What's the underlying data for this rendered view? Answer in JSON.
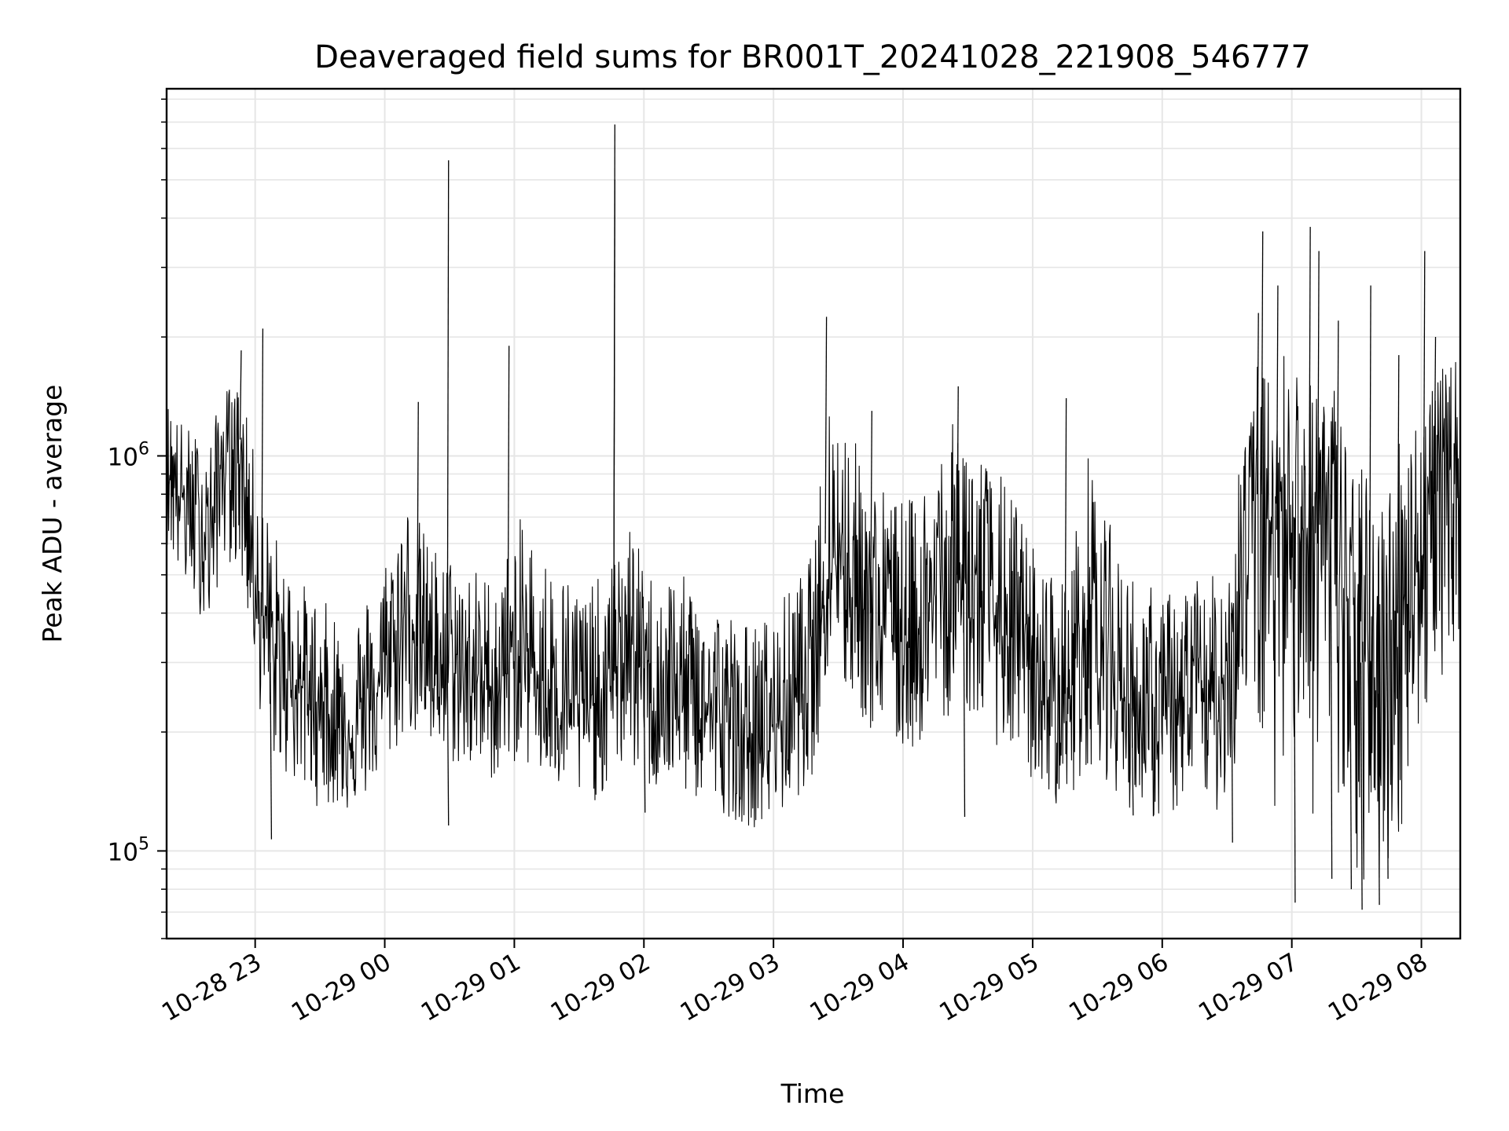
{
  "chart_data": {
    "type": "line",
    "title": "Deaveraged field sums for BR001T_20241028_221908_546777",
    "xlabel": "Time",
    "ylabel": "Peak ADU - average",
    "y_scale": "log",
    "ylim": [
      60000,
      8500000
    ],
    "xlim": [
      "2024-10-28 22:19",
      "2024-10-29 08:18"
    ],
    "grid": true,
    "line_color": "#000000",
    "grid_color": "#e6e6e6",
    "x_ticks": [
      {
        "t": "2024-10-28 23:00",
        "label": "10-28 23"
      },
      {
        "t": "2024-10-29 00:00",
        "label": "10-29 00"
      },
      {
        "t": "2024-10-29 01:00",
        "label": "10-29 01"
      },
      {
        "t": "2024-10-29 02:00",
        "label": "10-29 02"
      },
      {
        "t": "2024-10-29 03:00",
        "label": "10-29 03"
      },
      {
        "t": "2024-10-29 04:00",
        "label": "10-29 04"
      },
      {
        "t": "2024-10-29 05:00",
        "label": "10-29 05"
      },
      {
        "t": "2024-10-29 06:00",
        "label": "10-29 06"
      },
      {
        "t": "2024-10-29 07:00",
        "label": "10-29 07"
      },
      {
        "t": "2024-10-29 08:00",
        "label": "10-29 08"
      }
    ],
    "y_ticks": [
      {
        "value": 100000,
        "base": "10",
        "exp": "5"
      },
      {
        "value": 1000000,
        "base": "10",
        "exp": "6"
      }
    ],
    "series": [
      {
        "x": [
          "2024-10-28 22:19",
          "2024-10-28 22:25",
          "2024-10-28 22:32",
          "2024-10-28 22:39",
          "2024-10-28 22:45",
          "2024-10-28 22:52",
          "2024-10-28 22:57",
          "2024-10-28 23:03",
          "2024-10-28 23:09",
          "2024-10-28 23:16",
          "2024-10-28 23:22",
          "2024-10-28 23:28",
          "2024-10-28 23:35",
          "2024-10-28 23:41",
          "2024-10-28 23:47",
          "2024-10-28 23:53",
          "2024-10-29 00:00",
          "2024-10-29 00:06",
          "2024-10-29 00:12",
          "2024-10-29 00:18",
          "2024-10-29 00:24",
          "2024-10-29 00:31",
          "2024-10-29 00:37",
          "2024-10-29 00:43",
          "2024-10-29 00:50",
          "2024-10-29 00:56",
          "2024-10-29 01:02",
          "2024-10-29 01:08",
          "2024-10-29 01:15",
          "2024-10-29 01:21",
          "2024-10-29 01:27",
          "2024-10-29 01:33",
          "2024-10-29 01:39",
          "2024-10-29 01:46",
          "2024-10-29 01:52",
          "2024-10-29 01:58",
          "2024-10-29 02:04",
          "2024-10-29 02:11",
          "2024-10-29 02:17",
          "2024-10-29 02:23",
          "2024-10-29 02:29",
          "2024-10-29 02:36",
          "2024-10-29 02:42",
          "2024-10-29 02:48",
          "2024-10-29 02:54",
          "2024-10-29 03:01",
          "2024-10-29 03:07",
          "2024-10-29 03:13",
          "2024-10-29 03:19",
          "2024-10-29 03:25",
          "2024-10-29 03:32",
          "2024-10-29 03:38",
          "2024-10-29 03:44",
          "2024-10-29 03:50",
          "2024-10-29 03:57",
          "2024-10-29 04:03",
          "2024-10-29 04:09",
          "2024-10-29 04:15",
          "2024-10-29 04:22",
          "2024-10-29 04:28",
          "2024-10-29 04:34",
          "2024-10-29 04:40",
          "2024-10-29 04:47",
          "2024-10-29 04:53",
          "2024-10-29 04:59",
          "2024-10-29 05:05",
          "2024-10-29 05:12",
          "2024-10-29 05:18",
          "2024-10-29 05:24",
          "2024-10-29 05:30",
          "2024-10-29 05:37",
          "2024-10-29 05:43",
          "2024-10-29 05:49",
          "2024-10-29 05:55",
          "2024-10-29 06:02",
          "2024-10-29 06:08",
          "2024-10-29 06:14",
          "2024-10-29 06:20",
          "2024-10-29 06:26",
          "2024-10-29 06:33",
          "2024-10-29 06:39",
          "2024-10-29 06:45",
          "2024-10-29 06:51",
          "2024-10-29 06:58",
          "2024-10-29 07:04",
          "2024-10-29 07:10",
          "2024-10-29 07:16",
          "2024-10-29 07:23",
          "2024-10-29 07:29",
          "2024-10-29 07:35",
          "2024-10-29 07:41",
          "2024-10-29 07:48",
          "2024-10-29 07:54",
          "2024-10-29 08:00",
          "2024-10-29 08:06",
          "2024-10-29 08:12",
          "2024-10-29 08:18"
        ],
        "values": [
          1000000,
          800000,
          700000,
          650000,
          1000000,
          1100000,
          700000,
          400000,
          300000,
          280000,
          260000,
          240000,
          220000,
          200000,
          210000,
          230000,
          280000,
          350000,
          400000,
          330000,
          300000,
          290000,
          280000,
          270000,
          260000,
          280000,
          320000,
          300000,
          260000,
          250000,
          240000,
          230000,
          240000,
          270000,
          380000,
          290000,
          250000,
          260000,
          250000,
          240000,
          230000,
          210000,
          200000,
          190000,
          190000,
          210000,
          230000,
          260000,
          300000,
          600000,
          550000,
          480000,
          400000,
          380000,
          360000,
          350000,
          380000,
          440000,
          480000,
          500000,
          450000,
          400000,
          380000,
          330000,
          280000,
          250000,
          230000,
          250000,
          400000,
          420000,
          280000,
          240000,
          230000,
          220000,
          210000,
          230000,
          240000,
          250000,
          230000,
          400000,
          700000,
          800000,
          650000,
          900000,
          700000,
          600000,
          800000,
          500000,
          350000,
          300000,
          250000,
          400000,
          500000,
          550000,
          800000,
          900000,
          1000000
        ],
        "low": [
          600000,
          480000,
          420000,
          360000,
          550000,
          520000,
          380000,
          210000,
          170000,
          150000,
          140000,
          130000,
          130000,
          125000,
          130000,
          140000,
          160000,
          180000,
          200000,
          180000,
          170000,
          165000,
          160000,
          155000,
          150000,
          160000,
          170000,
          160000,
          145000,
          140000,
          135000,
          130000,
          135000,
          150000,
          165000,
          150000,
          140000,
          145000,
          140000,
          135000,
          130000,
          125000,
          120000,
          115000,
          115000,
          120000,
          130000,
          140000,
          160000,
          260000,
          250000,
          230000,
          200000,
          190000,
          180000,
          175000,
          190000,
          210000,
          220000,
          230000,
          210000,
          190000,
          180000,
          165000,
          150000,
          140000,
          130000,
          135000,
          160000,
          170000,
          140000,
          130000,
          125000,
          120000,
          120000,
          125000,
          130000,
          135000,
          125000,
          150000,
          250000,
          180000,
          120000,
          200000,
          150000,
          120000,
          160000,
          95000,
          80000,
          75000,
          80000,
          90000,
          150000,
          200000,
          250000,
          300000,
          350000
        ],
        "high": [
          1400000,
          1250000,
          1150000,
          1100000,
          1500000,
          1500000,
          1200000,
          800000,
          650000,
          520000,
          480000,
          440000,
          420000,
          400000,
          410000,
          460000,
          560000,
          700000,
          800000,
          650000,
          590000,
          560000,
          540000,
          520000,
          500000,
          560000,
          700000,
          640000,
          560000,
          520000,
          500000,
          470000,
          490000,
          540000,
          700000,
          580000,
          500000,
          520000,
          500000,
          480000,
          460000,
          420000,
          400000,
          380000,
          380000,
          420000,
          460000,
          510000,
          580000,
          1500000,
          1300000,
          1100000,
          900000,
          850000,
          800000,
          780000,
          850000,
          1050000,
          1200000,
          1250000,
          1100000,
          950000,
          880000,
          760000,
          620000,
          540000,
          500000,
          540000,
          1000000,
          1050000,
          620000,
          520000,
          500000,
          470000,
          450000,
          480000,
          500000,
          520000,
          480000,
          900000,
          1400000,
          1800000,
          1500000,
          2000000,
          1700000,
          1500000,
          1900000,
          1300000,
          1000000,
          900000,
          800000,
          1100000,
          1300000,
          1400000,
          1600000,
          1700000,
          1800000
        ],
        "spikes": [
          {
            "t": "2024-10-28 22:53",
            "value": 1850000
          },
          {
            "t": "2024-10-28 23:03",
            "value": 2100000
          },
          {
            "t": "2024-10-28 23:07",
            "value": 107000
          },
          {
            "t": "2024-10-29 00:15",
            "value": 1370000
          },
          {
            "t": "2024-10-29 00:29",
            "value": 116000
          },
          {
            "t": "2024-10-29 00:29",
            "value": 5600000
          },
          {
            "t": "2024-10-29 00:57",
            "value": 1900000
          },
          {
            "t": "2024-10-29 01:46",
            "value": 6900000
          },
          {
            "t": "2024-10-29 01:46",
            "value": 5000000
          },
          {
            "t": "2024-10-29 02:00",
            "value": 125000
          },
          {
            "t": "2024-10-29 03:24",
            "value": 2250000
          },
          {
            "t": "2024-10-29 03:45",
            "value": 1300000
          },
          {
            "t": "2024-10-29 04:25",
            "value": 1500000
          },
          {
            "t": "2024-10-29 04:28",
            "value": 122000
          },
          {
            "t": "2024-10-29 05:15",
            "value": 1400000
          },
          {
            "t": "2024-10-29 05:46",
            "value": 123000
          },
          {
            "t": "2024-10-29 06:32",
            "value": 105000
          },
          {
            "t": "2024-10-29 06:44",
            "value": 2300000
          },
          {
            "t": "2024-10-29 06:46",
            "value": 3700000
          },
          {
            "t": "2024-10-29 06:53",
            "value": 2700000
          },
          {
            "t": "2024-10-29 07:01",
            "value": 74000
          },
          {
            "t": "2024-10-29 07:08",
            "value": 3800000
          },
          {
            "t": "2024-10-29 07:12",
            "value": 3300000
          },
          {
            "t": "2024-10-29 07:18",
            "value": 85000
          },
          {
            "t": "2024-10-29 07:21",
            "value": 2200000
          },
          {
            "t": "2024-10-29 07:27",
            "value": 80000
          },
          {
            "t": "2024-10-29 07:32",
            "value": 71000
          },
          {
            "t": "2024-10-29 07:36",
            "value": 2700000
          },
          {
            "t": "2024-10-29 07:40",
            "value": 73000
          },
          {
            "t": "2024-10-29 07:44",
            "value": 85000
          },
          {
            "t": "2024-10-29 07:49",
            "value": 1800000
          },
          {
            "t": "2024-10-29 08:01",
            "value": 3300000
          },
          {
            "t": "2024-10-29 08:06",
            "value": 2000000
          }
        ]
      }
    ]
  }
}
